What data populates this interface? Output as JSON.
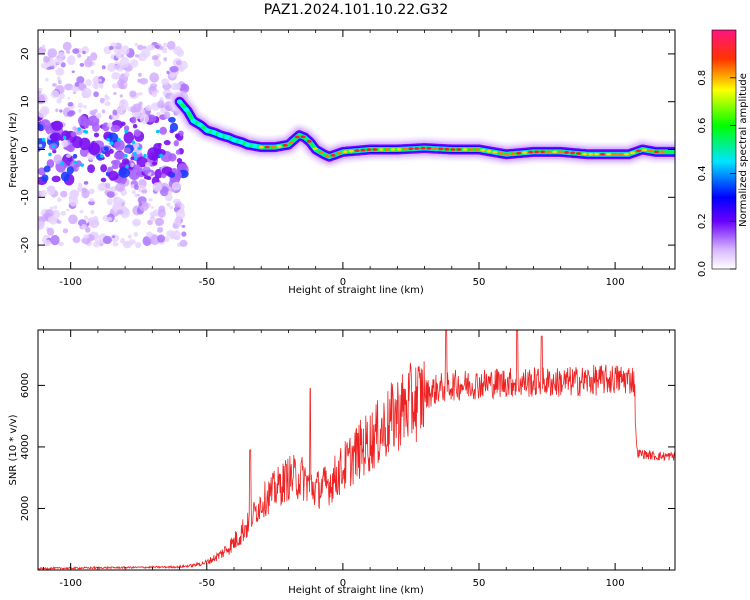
{
  "title": "PAZ1.2024.101.10.22.G32",
  "chart_data": [
    {
      "type": "heatmap",
      "title": "PAZ1.2024.101.10.22.G32",
      "xlabel": "Height of straight line (km)",
      "ylabel": "Frequency (Hz)",
      "xlim": [
        -112,
        122
      ],
      "ylim": [
        -25,
        25
      ],
      "xticks": [
        -100,
        -50,
        0,
        50,
        100
      ],
      "yticks": [
        -20,
        -10,
        0,
        10,
        20
      ],
      "colorbar": {
        "label": "Normalized spectral amplitude",
        "range": [
          0,
          1
        ],
        "ticks": [
          "0.0",
          "0.2",
          "0.4",
          "0.6",
          "0.8"
        ],
        "colormap": "rainbow",
        "colors": [
          "#ffffff",
          "#8a2be2",
          "#0000ff",
          "#00ffff",
          "#00ff00",
          "#ffff00",
          "#ff0000",
          "#ff1493"
        ]
      },
      "ridge": {
        "x": [
          -60,
          -57,
          -55,
          -52,
          -50,
          -47,
          -45,
          -42,
          -40,
          -37,
          -35,
          -30,
          -25,
          -20,
          -18,
          -16,
          -14,
          -12,
          -10,
          -7,
          -5,
          0,
          10,
          20,
          30,
          40,
          50,
          55,
          60,
          70,
          80,
          90,
          100,
          105,
          110,
          115,
          122
        ],
        "y": [
          10,
          8,
          6,
          5,
          4,
          3.5,
          3,
          2.5,
          2,
          1.5,
          1,
          0.5,
          0.5,
          1,
          2,
          3,
          2.5,
          1.5,
          0,
          -1,
          -1.5,
          -0.5,
          0,
          0,
          0.3,
          0,
          0,
          -0.5,
          -1,
          -0.5,
          -0.5,
          -1,
          -1,
          -1,
          0,
          -0.5,
          -0.5
        ]
      },
      "noise_region_x": [
        -112,
        -58
      ],
      "noise_region_y": [
        -20,
        22
      ]
    },
    {
      "type": "line",
      "title": "",
      "xlabel": "Height of straight line (km)",
      "ylabel": "SNR (10 * v/v)",
      "xlim": [
        -112,
        122
      ],
      "ylim": [
        0,
        7800
      ],
      "xticks": [
        -100,
        -50,
        0,
        50,
        100
      ],
      "yticks": [
        2000,
        4000,
        6000
      ],
      "color": "#ee2222",
      "trend": {
        "x": [
          -112,
          -60,
          -55,
          -50,
          -45,
          -40,
          -35,
          -30,
          -25,
          -20,
          -15,
          -10,
          -5,
          0,
          5,
          10,
          15,
          20,
          25,
          30,
          35,
          40,
          50,
          60,
          70,
          80,
          90,
          100,
          107,
          108,
          115,
          122
        ],
        "y": [
          50,
          100,
          150,
          250,
          500,
          900,
          1500,
          2200,
          2600,
          3000,
          3000,
          2600,
          2800,
          3300,
          3800,
          4200,
          4600,
          5100,
          5400,
          5700,
          5900,
          6000,
          6050,
          6100,
          6100,
          6100,
          6150,
          6200,
          6200,
          3800,
          3700,
          3700
        ]
      },
      "spikes": [
        {
          "x": -34,
          "y": 3900
        },
        {
          "x": -12,
          "y": 5900
        },
        {
          "x": 38,
          "y": 7800
        },
        {
          "x": 64,
          "y": 7800
        },
        {
          "x": 73,
          "y": 7600
        }
      ]
    }
  ]
}
